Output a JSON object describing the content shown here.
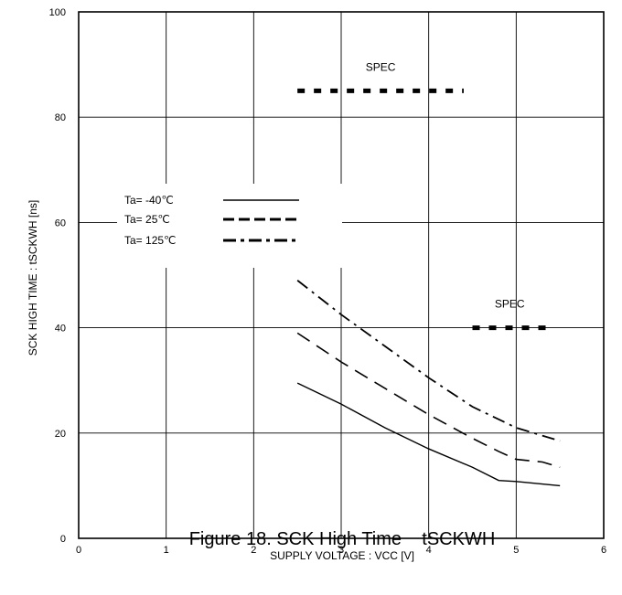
{
  "chart_data": {
    "type": "line",
    "title": "Figure 18. SCK High Time    tSCKWH",
    "xlabel": "SUPPLY VOLTAGE : VCC [V]",
    "ylabel": "SCK HIGH TIME : tSCKWH [ns]",
    "xlim": [
      0,
      6
    ],
    "ylim": [
      0,
      100
    ],
    "x_ticks": [
      "0",
      "1",
      "2",
      "3",
      "4",
      "5",
      "6"
    ],
    "y_ticks": [
      "0",
      "20",
      "40",
      "60",
      "80",
      "100"
    ],
    "grid": true,
    "legend_position": "left",
    "series": [
      {
        "name": "Ta= -40℃",
        "style": "solid",
        "color": "#000000",
        "x": [
          2.5,
          3.0,
          3.5,
          4.0,
          4.5,
          4.8,
          5.0,
          5.5
        ],
        "y": [
          29.5,
          25.5,
          21.0,
          17.0,
          13.5,
          11.0,
          10.8,
          10.0
        ]
      },
      {
        "name": "Ta=  25℃",
        "style": "dashed",
        "color": "#000000",
        "x": [
          2.5,
          3.0,
          3.5,
          4.0,
          4.5,
          4.8,
          5.0,
          5.3,
          5.5
        ],
        "y": [
          39.0,
          33.5,
          28.5,
          23.5,
          19.0,
          16.5,
          15.0,
          14.5,
          13.5
        ]
      },
      {
        "name": "Ta= 125℃",
        "style": "dashdot",
        "color": "#000000",
        "x": [
          2.5,
          3.0,
          3.5,
          4.0,
          4.5,
          5.0,
          5.5
        ],
        "y": [
          49.0,
          42.5,
          36.5,
          30.5,
          25.0,
          21.0,
          18.5
        ]
      }
    ],
    "annotations": [
      {
        "text": "SPEC",
        "x": [
          2.5,
          4.4
        ],
        "y": 85
      },
      {
        "text": "SPEC",
        "x": [
          4.5,
          5.35
        ],
        "y": 40
      }
    ]
  }
}
